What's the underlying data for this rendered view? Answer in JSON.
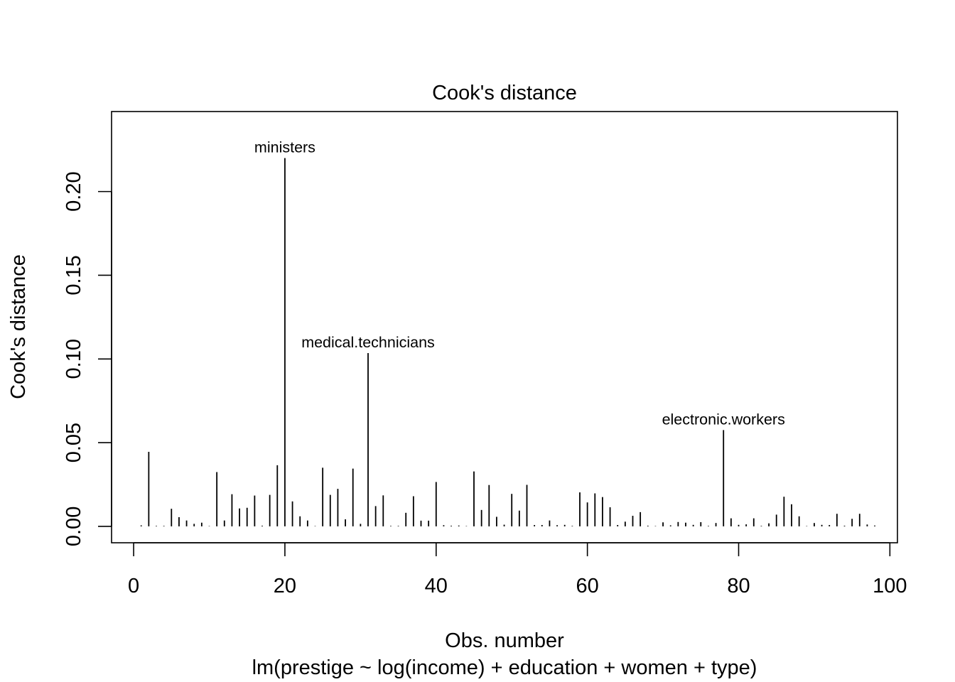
{
  "chart_data": {
    "type": "bar",
    "subtype": "spike",
    "title": "Cook's distance",
    "xlabel": "Obs. number",
    "subtitle": "lm(prestige ~ log(income) + education + women + type)",
    "ylabel": "Cook's distance",
    "xlim": [
      -2.92,
      101
    ],
    "ylim": [
      -0.0098,
      0.2478
    ],
    "x_ticks": [
      0,
      20,
      40,
      60,
      80,
      100
    ],
    "x_tick_labels": [
      "0",
      "20",
      "40",
      "60",
      "80",
      "100"
    ],
    "y_ticks": [
      0,
      0.05,
      0.1,
      0.15,
      0.2
    ],
    "y_tick_labels": [
      "0.00",
      "0.05",
      "0.10",
      "0.15",
      "0.20"
    ],
    "grid": false,
    "legend": "none",
    "x": [
      1,
      2,
      3,
      4,
      5,
      6,
      7,
      8,
      9,
      10,
      11,
      12,
      13,
      14,
      15,
      16,
      17,
      18,
      19,
      20,
      21,
      22,
      23,
      24,
      25,
      26,
      27,
      28,
      29,
      30,
      31,
      32,
      33,
      34,
      35,
      36,
      37,
      38,
      39,
      40,
      41,
      42,
      43,
      44,
      45,
      46,
      47,
      48,
      49,
      50,
      51,
      52,
      53,
      54,
      55,
      56,
      57,
      58,
      59,
      60,
      61,
      62,
      63,
      64,
      65,
      66,
      67,
      68,
      69,
      70,
      71,
      72,
      73,
      74,
      75,
      76,
      77,
      78,
      79,
      80,
      81,
      82,
      83,
      84,
      85,
      86,
      87,
      88,
      89,
      90,
      91,
      92,
      93,
      94,
      95,
      96,
      97,
      98
    ],
    "values": [
      0.0006,
      0.0445,
      0.0003,
      0.0003,
      0.0105,
      0.0055,
      0.0035,
      0.0015,
      0.0022,
      0.0002,
      0.0324,
      0.0035,
      0.0192,
      0.0107,
      0.0111,
      0.0184,
      0.0004,
      0.0188,
      0.0365,
      0.22,
      0.0149,
      0.006,
      0.0035,
      0.0002,
      0.035,
      0.0188,
      0.0224,
      0.0042,
      0.0345,
      0.0015,
      0.1035,
      0.0121,
      0.0185,
      0.0003,
      0.0003,
      0.0081,
      0.018,
      0.0034,
      0.0034,
      0.0265,
      0.0007,
      0.0004,
      0.0005,
      0.0002,
      0.0328,
      0.0098,
      0.0247,
      0.0057,
      0.001,
      0.0194,
      0.0094,
      0.0248,
      0.0008,
      0.0008,
      0.0035,
      0.0007,
      0.0009,
      0.0003,
      0.0203,
      0.0143,
      0.0197,
      0.0175,
      0.0114,
      0.0008,
      0.0028,
      0.0063,
      0.0085,
      0.0004,
      0.0002,
      0.0024,
      0.0006,
      0.0026,
      0.0022,
      0.0009,
      0.0025,
      0.0003,
      0.002,
      0.0575,
      0.0048,
      0.0009,
      0.0012,
      0.0048,
      0.0003,
      0.0018,
      0.007,
      0.0177,
      0.0132,
      0.006,
      0.0002,
      0.002,
      0.0009,
      0.0008,
      0.0075,
      0.0004,
      0.0045,
      0.0075,
      0.0011,
      0.0005
    ],
    "annotations": [
      {
        "x": 20,
        "label": "ministers"
      },
      {
        "x": 31,
        "label": "medical.technicians"
      },
      {
        "x": 78,
        "label": "electronic.workers"
      }
    ]
  }
}
